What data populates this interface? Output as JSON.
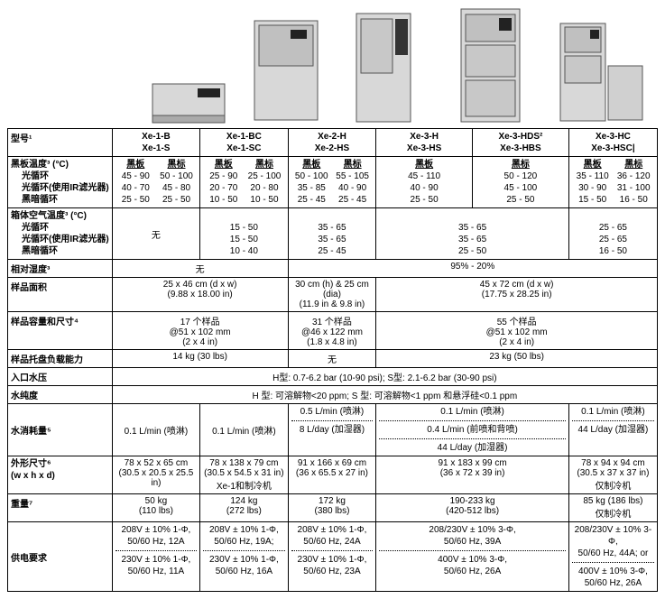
{
  "labels": {
    "model": "型号¹",
    "blackpanel_temp": "黑板温度³ (°C)",
    "light_cycle": "光循环",
    "light_cycle_ir": "光循环(使用IR滤光器)",
    "dark_cycle": "黑暗循环",
    "chamber_air_temp": "箱体空气温度³ (°C)",
    "rel_humidity": "相对湿度³",
    "sample_area": "样品面积",
    "sample_capacity": "样品容量和尺寸⁴",
    "tray_capacity": "样品托盘负载能力",
    "inlet_pressure": "入口水压",
    "water_purity": "水纯度",
    "water_consumption": "水消耗量⁵",
    "ext_dim": "外形尺寸⁶",
    "ext_dim_sub": "(w x h x d)",
    "weight": "重量⁷",
    "power": "供电要求",
    "heibiao": "黑板",
    "heibiao2": "黑标",
    "none": "无"
  },
  "models": {
    "c1": "Xe-1-B\nXe-1-S",
    "c2": "Xe-1-BC\nXe-1-SC",
    "c3": "Xe-2-H\nXe-2-HS",
    "c4": "Xe-3-H\nXe-3-HS",
    "c5": "Xe-3-HDS²\nXe-3-HBS",
    "c6": "Xe-3-HC\nXe-3-HSC|"
  },
  "bptemp": {
    "c1": {
      "a1": "45 - 90",
      "a2": "40 - 70",
      "a3": "25 - 50",
      "b1": "50 - 100",
      "b2": "45 - 80",
      "b3": "25 - 50"
    },
    "c2": {
      "a1": "25 - 90",
      "a2": "20 - 70",
      "a3": "10 - 50",
      "b1": "25 - 100",
      "b2": "20 - 80",
      "b3": "10 - 50"
    },
    "c3": {
      "a1": "50 - 100",
      "a2": "35 - 85",
      "a3": "25 - 45",
      "b1": "55 - 105",
      "b2": "40 - 90",
      "b3": "25 - 45"
    },
    "c4": {
      "a1": "45 - 110",
      "a2": "40 - 90",
      "a3": "25 - 50",
      "b1": "",
      "b2": "",
      "b3": ""
    },
    "c5": {
      "a1": "50 - 120",
      "a2": "45 - 100",
      "a3": "25 - 50",
      "b1": "",
      "b2": "",
      "b3": ""
    },
    "c6a": {
      "a1": "35 - 110",
      "a2": "30 - 90",
      "a3": "15 - 50"
    },
    "c6b": {
      "a1": "36 - 120",
      "a2": "31 - 100",
      "a3": "16 - 50"
    }
  },
  "airtemp": {
    "c2": {
      "l1": "15 - 50",
      "l2": "15 - 50",
      "l3": "10 - 40"
    },
    "c3": {
      "l1": "35 - 65",
      "l2": "35 - 65",
      "l3": "25 - 45"
    },
    "c45": {
      "l1": "35 - 65",
      "l2": "35 - 65",
      "l3": "25 - 50"
    },
    "c6": {
      "l1": "25 - 65",
      "l2": "25 - 65",
      "l3": "16 - 50"
    }
  },
  "humidity": {
    "left": "无",
    "right": "95% - 20%"
  },
  "area": {
    "c12": "25 x 46 cm (d x w)\n(9.88 x 18.00 in)",
    "c3": "30 cm (h) & 25 cm (dia)\n(11.9 in & 9.8 in)",
    "c456": "45 x 72 cm (d x w)\n(17.75 x 28.25 in)"
  },
  "capacity": {
    "c12": "17 个样品\n@51 x 102 mm\n(2 x 4 in)",
    "c3": "31 个样品\n@46 x 122 mm\n(1.8 x 4.8 in)",
    "c456": "55 个样品\n@51 x 102 mm\n(2 x 4 in)"
  },
  "tray": {
    "c12": "14 kg (30 lbs)",
    "c3": "无",
    "c456": "23 kg (50 lbs)"
  },
  "inlet": "H型: 0.7-6.2 bar (10-90 psi); S型: 2.1-6.2 bar (30-90 psi)",
  "purity": "H 型: 可溶解物<20 ppm; S 型: 可溶解物<1 ppm 和悬浮硅<0.1 ppm",
  "water": {
    "c1": "0.1 L/min (喷淋)",
    "c2": "0.1 L/min (喷淋)",
    "c3a": "0.5 L/min (喷淋)",
    "c3b": "8 L/day (加湿器)",
    "c45a": "0.1 L/min (喷淋)",
    "c45b": "0.4 L/min (前喷和背喷)",
    "c45c": "44 L/day (加湿器)",
    "c6a": "0.1 L/min (喷淋)",
    "c6b": "44 L/day (加湿器)"
  },
  "dims": {
    "c1": "78 x 52 x 65 cm\n(30.5 x 20.5 x  25.5 in)",
    "c2": "78 x 138 x 79 cm\n(30.5 x 54.5 x 31 in)\nXe-1和制冷机",
    "c3": "91 x 166 x 69 cm\n(36 x 65.5 x 27 in)",
    "c45": "91 x 183 x 99 cm\n(36 x 72 x 39 in)",
    "c6": "78 x 94 x 94 cm\n(30.5 x 37 x 37 in)\n仅制冷机"
  },
  "weight": {
    "c1": "50 kg\n(110 lbs)",
    "c2": "124 kg\n(272 lbs)",
    "c3": "172 kg\n(380 lbs)",
    "c45": "190-233 kg\n(420-512 lbs)",
    "c6": "85 kg (186 lbs)\n仅制冷机"
  },
  "power": {
    "c1a": "208V ± 10% 1-Φ,\n50/60 Hz, 12A",
    "c1b": "230V ± 10% 1-Φ,\n50/60 Hz, 11A",
    "c2a": "208V ± 10% 1-Φ,\n50/60 Hz, 19A;",
    "c2b": "230V ± 10% 1-Φ,\n50/60 Hz, 16A",
    "c3a": "208V ± 10% 1-Φ,\n50/60 Hz, 24A",
    "c3b": "230V ± 10% 1-Φ,\n50/60 Hz, 23A",
    "c45a": "208/230V ± 10% 3-Φ,\n50/60 Hz, 39A",
    "c45b": "400V ± 10% 3-Φ,\n50/60 Hz, 26A",
    "c6a": "208/230V ± 10% 3-Φ,\n50/60 Hz, 44A; or",
    "c6b": "400V ± 10% 3-Φ,\n50/60 Hz, 26A"
  }
}
